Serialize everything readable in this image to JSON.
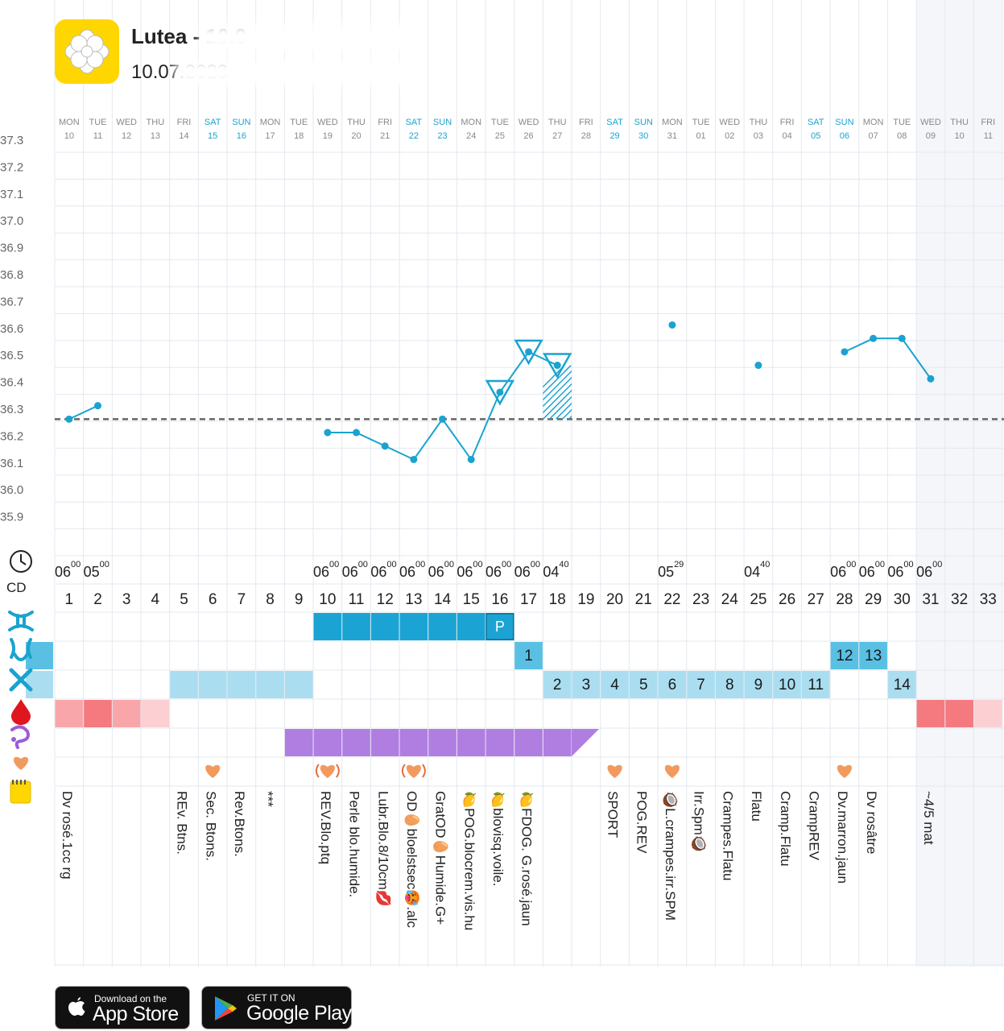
{
  "app": {
    "title": "Lutea - 10.0",
    "subtitle": "10.07.2023",
    "logo_icon": "flower-icon",
    "accent_color": "#1AA3D0",
    "brand_color": "#FFD600"
  },
  "chart_data": {
    "type": "line",
    "title": "",
    "xlabel": "",
    "ylabel": "",
    "ylim": [
      35.8,
      37.3
    ],
    "y_ticks": [
      "37.3",
      "37.2",
      "37.1",
      "37.0",
      "36.9",
      "36.8",
      "36.7",
      "36.6",
      "36.5",
      "36.4",
      "36.3",
      "36.2",
      "36.1",
      "36.0",
      "35.9"
    ],
    "coverline": 36.26,
    "days": [
      {
        "dow": "MON",
        "dd": "10",
        "weekend": false
      },
      {
        "dow": "TUE",
        "dd": "11",
        "weekend": false
      },
      {
        "dow": "WED",
        "dd": "12",
        "weekend": false
      },
      {
        "dow": "THU",
        "dd": "13",
        "weekend": false
      },
      {
        "dow": "FRI",
        "dd": "14",
        "weekend": false
      },
      {
        "dow": "SAT",
        "dd": "15",
        "weekend": true
      },
      {
        "dow": "SUN",
        "dd": "16",
        "weekend": true
      },
      {
        "dow": "MON",
        "dd": "17",
        "weekend": false
      },
      {
        "dow": "TUE",
        "dd": "18",
        "weekend": false
      },
      {
        "dow": "WED",
        "dd": "19",
        "weekend": false
      },
      {
        "dow": "THU",
        "dd": "20",
        "weekend": false
      },
      {
        "dow": "FRI",
        "dd": "21",
        "weekend": false
      },
      {
        "dow": "SAT",
        "dd": "22",
        "weekend": true
      },
      {
        "dow": "SUN",
        "dd": "23",
        "weekend": true
      },
      {
        "dow": "MON",
        "dd": "24",
        "weekend": false
      },
      {
        "dow": "TUE",
        "dd": "25",
        "weekend": false
      },
      {
        "dow": "WED",
        "dd": "26",
        "weekend": false
      },
      {
        "dow": "THU",
        "dd": "27",
        "weekend": false
      },
      {
        "dow": "FRI",
        "dd": "28",
        "weekend": false
      },
      {
        "dow": "SAT",
        "dd": "29",
        "weekend": true
      },
      {
        "dow": "SUN",
        "dd": "30",
        "weekend": true
      },
      {
        "dow": "MON",
        "dd": "31",
        "weekend": false
      },
      {
        "dow": "TUE",
        "dd": "01",
        "weekend": false
      },
      {
        "dow": "WED",
        "dd": "02",
        "weekend": false
      },
      {
        "dow": "THU",
        "dd": "03",
        "weekend": false
      },
      {
        "dow": "FRI",
        "dd": "04",
        "weekend": false
      },
      {
        "dow": "SAT",
        "dd": "05",
        "weekend": true
      },
      {
        "dow": "SUN",
        "dd": "06",
        "weekend": true
      },
      {
        "dow": "MON",
        "dd": "07",
        "weekend": false
      },
      {
        "dow": "TUE",
        "dd": "08",
        "weekend": false
      },
      {
        "dow": "WED",
        "dd": "09",
        "weekend": false
      },
      {
        "dow": "THU",
        "dd": "10",
        "weekend": false
      },
      {
        "dow": "FRI",
        "dd": "11",
        "weekend": false
      }
    ],
    "cycle_days": [
      "1",
      "2",
      "3",
      "4",
      "5",
      "6",
      "7",
      "8",
      "9",
      "10",
      "11",
      "12",
      "13",
      "14",
      "15",
      "16",
      "17",
      "18",
      "19",
      "20",
      "21",
      "22",
      "23",
      "24",
      "25",
      "26",
      "27",
      "28",
      "29",
      "30",
      "31",
      "32",
      "33"
    ],
    "series": [
      {
        "x": [
          1,
          2,
          3,
          4,
          5,
          6,
          7,
          8,
          9,
          10,
          11,
          12,
          13,
          14,
          15,
          16,
          17,
          18,
          19,
          20,
          21,
          22,
          23,
          24,
          25,
          26,
          27,
          28,
          29,
          30,
          31,
          32,
          33
        ],
        "values": [
          36.26,
          36.31,
          null,
          null,
          null,
          null,
          null,
          null,
          null,
          36.21,
          36.21,
          36.16,
          36.11,
          36.26,
          36.11,
          36.36,
          36.51,
          36.46,
          null,
          null,
          null,
          36.61,
          null,
          null,
          36.46,
          null,
          null,
          36.51,
          36.56,
          36.56,
          36.41,
          null,
          null
        ]
      }
    ],
    "ovulation_markers": [
      16,
      17,
      18
    ],
    "hatched_day": 18,
    "times": [
      {
        "day": 1,
        "h": "06",
        "m": "00"
      },
      {
        "day": 2,
        "h": "05",
        "m": "00"
      },
      {
        "day": 10,
        "h": "06",
        "m": "00"
      },
      {
        "day": 11,
        "h": "06",
        "m": "00"
      },
      {
        "day": 12,
        "h": "06",
        "m": "00"
      },
      {
        "day": 13,
        "h": "06",
        "m": "00"
      },
      {
        "day": 14,
        "h": "06",
        "m": "00"
      },
      {
        "day": 15,
        "h": "06",
        "m": "00"
      },
      {
        "day": 16,
        "h": "06",
        "m": "00"
      },
      {
        "day": 17,
        "h": "06",
        "m": "00"
      },
      {
        "day": 18,
        "h": "04",
        "m": "40"
      },
      {
        "day": 22,
        "h": "05",
        "m": "29"
      },
      {
        "day": 25,
        "h": "04",
        "m": "40"
      },
      {
        "day": 28,
        "h": "06",
        "m": "00"
      },
      {
        "day": 29,
        "h": "06",
        "m": "00"
      },
      {
        "day": 30,
        "h": "06",
        "m": "00"
      },
      {
        "day": 31,
        "h": "06",
        "m": "00"
      }
    ],
    "mucus_high": {
      "days": [
        10,
        11,
        12,
        13,
        14,
        15,
        16
      ],
      "labels": {
        "16": "P"
      }
    },
    "mucus_mid": {
      "day_labels": {
        "17": "1",
        "28": "12",
        "29": "13"
      }
    },
    "mucus_low": {
      "prefill_days": [
        5,
        6,
        7,
        8,
        9
      ],
      "day_labels": {
        "18": "2",
        "19": "3",
        "20": "4",
        "21": "5",
        "22": "6",
        "23": "7",
        "24": "8",
        "25": "9",
        "26": "10",
        "27": "11",
        "30": "14"
      }
    },
    "period": {
      "days": {
        "1": "#F9A6AB",
        "2": "#F47A7F",
        "3": "#F9A6AB",
        "4": "#FCD0D3",
        "31": "#F47A7F",
        "32": "#F47A7F",
        "33": "#FCD0D3"
      }
    },
    "test_days": [
      9,
      10,
      11,
      12,
      13,
      14,
      15,
      16,
      17,
      18
    ],
    "hearts": [
      {
        "day": 6,
        "style": "plain"
      },
      {
        "day": 10,
        "style": "wave"
      },
      {
        "day": 13,
        "style": "wave"
      },
      {
        "day": 20,
        "style": "plain"
      },
      {
        "day": 22,
        "style": "plain"
      },
      {
        "day": 28,
        "style": "plain"
      }
    ],
    "notes": [
      {
        "day": 1,
        "text": "Dv rosé.1cc rg"
      },
      {
        "day": 5,
        "text": "REv. Btns."
      },
      {
        "day": 6,
        "text": "Sec. Btons."
      },
      {
        "day": 7,
        "text": "Rev.Btons."
      },
      {
        "day": 8,
        "text": "***"
      },
      {
        "day": 10,
        "text": "REV.Blo.ptq"
      },
      {
        "day": 11,
        "text": "Perle blo.humide."
      },
      {
        "day": 12,
        "text": "Lubr.Blo.8/10cm💋"
      },
      {
        "day": 13,
        "text": "OD🥚bloelstsec🥵.alc"
      },
      {
        "day": 14,
        "text": "GratOD🥚Humide.G+"
      },
      {
        "day": 15,
        "text": "🍋POG.blocrem.vis.hu"
      },
      {
        "day": 16,
        "text": "🍋blovisq.voile."
      },
      {
        "day": 17,
        "text": "🍋FDOG. G.rosé.jaun"
      },
      {
        "day": 20,
        "text": "SPORT"
      },
      {
        "day": 21,
        "text": "POG.REV"
      },
      {
        "day": 22,
        "text": "🥥L.crampes.irr.SPM"
      },
      {
        "day": 23,
        "text": "Irr.Spm🥥"
      },
      {
        "day": 24,
        "text": "Crampes.Flatu"
      },
      {
        "day": 25,
        "text": "Flatu"
      },
      {
        "day": 26,
        "text": "Cramp.Flatu"
      },
      {
        "day": 27,
        "text": "CrampREV"
      },
      {
        "day": 28,
        "text": "Dv.marron.jaun"
      },
      {
        "day": 29,
        "text": "Dv rosâtre"
      },
      {
        "day": 31,
        "text": "~4/5 mat"
      }
    ],
    "row_icons": [
      "clock-icon",
      "cycle-day-label",
      "mucus-high-icon",
      "mucus-mid-icon",
      "mucus-low-icon",
      "blood-drop-icon",
      "test-icon",
      "heart-icon",
      "note-icon"
    ],
    "cd_label": "CD"
  },
  "stores": {
    "apple_small": "Download on the",
    "apple_big": "App Store",
    "google_small": "GET IT ON",
    "google_big": "Google Play"
  }
}
